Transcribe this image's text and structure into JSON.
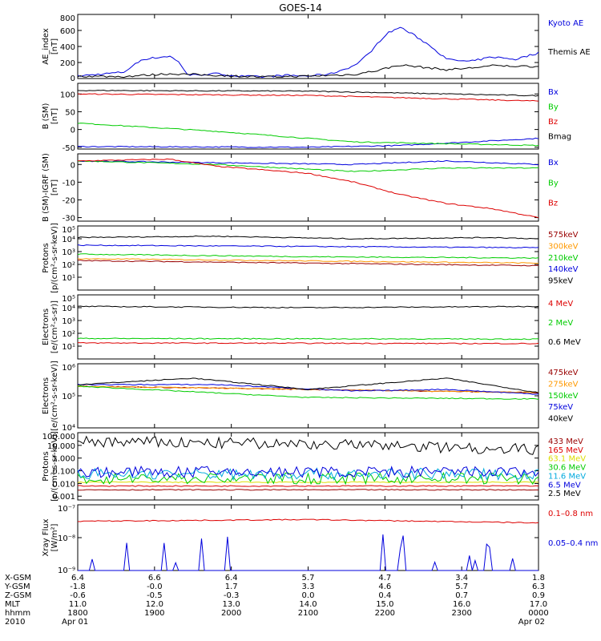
{
  "title": "GOES-14",
  "colors": {
    "black": "#000000",
    "blue": "#0000dd",
    "red": "#dd0000",
    "green": "#00cc00",
    "orange": "#ff9900",
    "cyan": "#00aadd",
    "yellow": "#dddd00",
    "dkred": "#990000",
    "purple": "#880088"
  },
  "chart_data": [
    {
      "type": "line",
      "ylabel": "AE_index\n[nT]",
      "ylim": [
        0,
        800
      ],
      "log": false,
      "ticks": [
        "800",
        "600",
        "400",
        "200",
        "0"
      ],
      "tickvals": [
        800,
        600,
        400,
        200,
        0
      ],
      "series": [
        {
          "name": "Kyoto AE",
          "color": "#0000dd",
          "x": [
            0,
            0.1,
            0.14,
            0.2,
            0.22,
            0.24,
            0.3,
            0.35,
            0.4,
            0.45,
            0.5,
            0.55,
            0.6,
            0.63,
            0.67,
            0.7,
            0.73,
            0.77,
            0.8,
            0.85,
            0.9,
            0.95,
            1
          ],
          "y": [
            30,
            80,
            240,
            280,
            200,
            40,
            60,
            30,
            20,
            40,
            30,
            60,
            160,
            300,
            560,
            640,
            540,
            390,
            240,
            210,
            270,
            240,
            320
          ]
        },
        {
          "name": "Themis AE",
          "color": "#000000",
          "x": [
            0,
            0.1,
            0.2,
            0.3,
            0.4,
            0.5,
            0.6,
            0.65,
            0.7,
            0.75,
            0.8,
            0.85,
            0.9,
            1
          ],
          "y": [
            30,
            25,
            60,
            40,
            20,
            30,
            50,
            100,
            170,
            140,
            110,
            130,
            160,
            150
          ]
        }
      ]
    },
    {
      "type": "line",
      "ylabel": "B (SM)\n[nT]",
      "ylim": [
        -55,
        130
      ],
      "log": false,
      "ticks": [
        "100",
        "50",
        "0",
        "-50"
      ],
      "tickvals": [
        100,
        50,
        0,
        -50
      ],
      "series": [
        {
          "name": "Bx",
          "color": "#0000dd",
          "x": [
            0,
            0.5,
            0.7,
            1
          ],
          "y": [
            -48,
            -50,
            -45,
            -25
          ]
        },
        {
          "name": "By",
          "color": "#00cc00",
          "x": [
            0,
            0.3,
            0.6,
            1
          ],
          "y": [
            18,
            -5,
            -35,
            -45
          ]
        },
        {
          "name": "Bz",
          "color": "#dd0000",
          "x": [
            0,
            0.5,
            1
          ],
          "y": [
            100,
            96,
            80
          ]
        },
        {
          "name": "Bmag",
          "color": "#000000",
          "x": [
            0,
            0.5,
            1
          ],
          "y": [
            110,
            108,
            95
          ]
        }
      ]
    },
    {
      "type": "line",
      "ylabel": "B (SM)-IGRF (SM)\n[nT]",
      "ylim": [
        -32,
        6
      ],
      "log": false,
      "ticks": [
        "0",
        "-10",
        "-20",
        "-30"
      ],
      "tickvals": [
        0,
        -10,
        -20,
        -30
      ],
      "series": [
        {
          "name": "Bx",
          "color": "#0000dd",
          "x": [
            0,
            0.3,
            0.6,
            0.8,
            1
          ],
          "y": [
            2,
            1,
            0,
            2,
            0
          ]
        },
        {
          "name": "By",
          "color": "#00cc00",
          "x": [
            0,
            0.3,
            0.6,
            0.7,
            0.8,
            1
          ],
          "y": [
            2,
            0,
            -4,
            -3,
            -2,
            -2
          ]
        },
        {
          "name": "Bz",
          "color": "#dd0000",
          "x": [
            0,
            0.2,
            0.3,
            0.5,
            0.6,
            0.7,
            0.8,
            0.9,
            1
          ],
          "y": [
            2,
            3,
            -1,
            -5,
            -10,
            -17,
            -22,
            -25,
            -30
          ]
        }
      ]
    },
    {
      "type": "line",
      "ylabel": "Protons\n[p/(cm²-s-sr-keV)]",
      "ylim": [
        0,
        5
      ],
      "log": true,
      "ticks": [
        "10⁵",
        "10⁴",
        "10³",
        "10²",
        "10¹"
      ],
      "tickvals": [
        5,
        4,
        3,
        2,
        1
      ],
      "series": [
        {
          "name": "575keV",
          "color": "#990000",
          "x": [
            0,
            1
          ],
          "y": [
            2.3,
            1.9
          ]
        },
        {
          "name": "300keV",
          "color": "#ff9900",
          "x": [
            0,
            1
          ],
          "y": [
            2.45,
            2.1
          ]
        },
        {
          "name": "210keV",
          "color": "#00cc00",
          "x": [
            0,
            0.5,
            1
          ],
          "y": [
            2.8,
            2.6,
            2.5
          ]
        },
        {
          "name": "140keV",
          "color": "#0000dd",
          "x": [
            0,
            0.5,
            1
          ],
          "y": [
            3.5,
            3.4,
            3.3
          ]
        },
        {
          "name": "95keV",
          "color": "#000000",
          "x": [
            0,
            0.3,
            0.6,
            0.9,
            1
          ],
          "y": [
            4.1,
            4.2,
            4.0,
            4.1,
            4.0
          ]
        }
      ]
    },
    {
      "type": "line",
      "ylabel": "Electrons\n[e/(cm²-s-sr)]",
      "ylim": [
        0,
        5
      ],
      "log": true,
      "ticks": [
        "10⁵",
        "10⁴",
        "10³",
        "10²",
        "10¹"
      ],
      "tickvals": [
        5,
        4,
        3,
        2,
        1
      ],
      "series": [
        {
          "name": "4 MeV",
          "color": "#dd0000",
          "x": [
            0,
            1
          ],
          "y": [
            1.25,
            1.2
          ]
        },
        {
          "name": "2 MeV",
          "color": "#00cc00",
          "x": [
            0,
            1
          ],
          "y": [
            1.6,
            1.55
          ]
        },
        {
          "name": "0.6 MeV",
          "color": "#000000",
          "x": [
            0,
            0.5,
            1
          ],
          "y": [
            4.1,
            4.0,
            4.1
          ]
        }
      ]
    },
    {
      "type": "line",
      "ylabel": "Electrons\n[e/(cm²-s-sr-keV)]",
      "ylim": [
        4,
        6
      ],
      "log": true,
      "ticks": [
        "10⁶",
        "10⁵",
        "10⁴"
      ],
      "tickvals": [
        6,
        5,
        4
      ],
      "series": [
        {
          "name": "475keV",
          "color": "#990000",
          "x": [
            0,
            1
          ],
          "y": [
            5.3,
            5.1
          ]
        },
        {
          "name": "275keV",
          "color": "#ff9900",
          "x": [
            0,
            1
          ],
          "y": [
            5.3,
            5.1
          ]
        },
        {
          "name": "150keV",
          "color": "#00cc00",
          "x": [
            0,
            0.5,
            1
          ],
          "y": [
            5.3,
            4.95,
            4.9
          ]
        },
        {
          "name": "75keV",
          "color": "#0000dd",
          "x": [
            0,
            0.3,
            0.6,
            0.8,
            1
          ],
          "y": [
            5.35,
            5.35,
            5.15,
            5.2,
            5.05
          ]
        },
        {
          "name": "40keV",
          "color": "#000000",
          "x": [
            0,
            0.25,
            0.5,
            0.8,
            1
          ],
          "y": [
            5.35,
            5.55,
            5.2,
            5.55,
            5.1
          ]
        }
      ]
    },
    {
      "type": "line",
      "ylabel": "Protons\n[p/(cm²-s-sr-keV)]",
      "ylim": [
        -3.3,
        2
      ],
      "log": true,
      "ticks": [
        "100.000",
        "10.000",
        "1.000",
        "0.100",
        "0.010",
        "0.001"
      ],
      "tickvals": [
        2,
        1,
        0,
        -1,
        -2,
        -3
      ],
      "series": [
        {
          "name": "433 MeV",
          "color": "#990000",
          "x": [
            0,
            1
          ],
          "y": [
            -2.5,
            -2.5
          ]
        },
        {
          "name": "165 MeV",
          "color": "#dd0000",
          "x": [
            0,
            1
          ],
          "y": [
            -2.2,
            -2.2
          ]
        },
        {
          "name": "63.1 MeV",
          "color": "#dddd00",
          "x": [
            0,
            1
          ],
          "y": [
            -1.9,
            -1.9
          ]
        },
        {
          "name": "30.6 MeV",
          "color": "#00cc00",
          "x": [
            0,
            1
          ],
          "y": [
            -1.6,
            -1.6
          ]
        },
        {
          "name": "11.6 MeV",
          "color": "#00aadd",
          "x": [
            0,
            1
          ],
          "y": [
            -1.25,
            -1.25
          ]
        },
        {
          "name": "6.5 MeV",
          "color": "#0000dd",
          "x": [
            0,
            1
          ],
          "y": [
            -1.1,
            -1.1
          ]
        },
        {
          "name": "2.5 MeV",
          "color": "#000000",
          "x": [
            0,
            0.5,
            1
          ],
          "y": [
            1.3,
            1.1,
            0.7
          ]
        }
      ]
    },
    {
      "type": "line",
      "ylabel": "Xray Flux\n[W/m²]",
      "ylim": [
        -9,
        -7
      ],
      "log": true,
      "ticks": [
        "10⁻⁷",
        "10⁻⁸",
        "10⁻⁹"
      ],
      "tickvals": [
        -7,
        -8,
        -9
      ],
      "series": [
        {
          "name": "0.1–0.8 nm",
          "color": "#dd0000",
          "x": [
            0,
            0.5,
            1
          ],
          "y": [
            -7.5,
            -7.45,
            -7.55
          ]
        },
        {
          "name": "0.05–0.4 nm",
          "color": "#0000dd",
          "x": [
            0,
            1
          ],
          "y": [
            -9,
            -9
          ]
        }
      ]
    }
  ],
  "xaxis": {
    "labels": [
      "X-GSM",
      "Y-GSM",
      "Z-GSM",
      "MLT",
      "hhmm",
      "2010"
    ],
    "columns": [
      [
        "6.4",
        "-1.8",
        "-0.6",
        "11.0",
        "1800",
        "Apr 01"
      ],
      [
        "6.6",
        "-0.0",
        "-0.5",
        "12.0",
        "1900",
        ""
      ],
      [
        "6.4",
        "1.7",
        "-0.3",
        "13.0",
        "2000",
        ""
      ],
      [
        "5.7",
        "3.3",
        "0.0",
        "14.0",
        "2100",
        ""
      ],
      [
        "4.7",
        "4.6",
        "0.4",
        "15.0",
        "2200",
        ""
      ],
      [
        "3.4",
        "5.7",
        "0.7",
        "16.0",
        "2300",
        ""
      ],
      [
        "1.8",
        "6.3",
        "0.9",
        "17.0",
        "0000",
        "Apr 02"
      ]
    ]
  }
}
